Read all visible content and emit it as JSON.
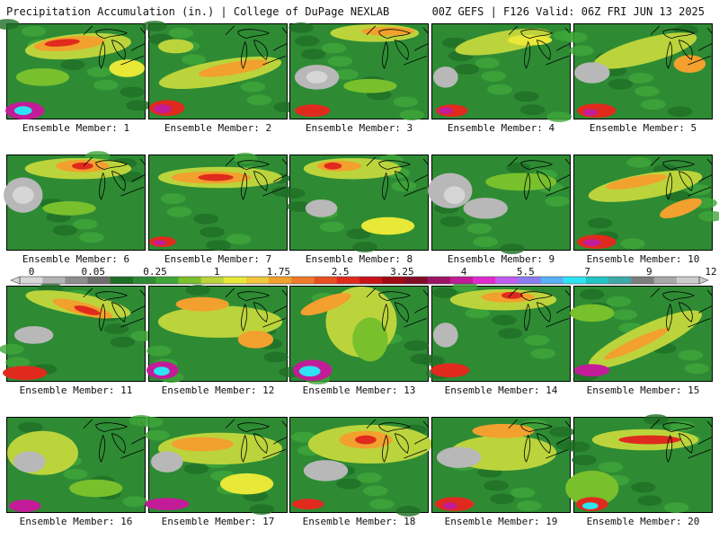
{
  "header": {
    "left": "Precipitation Accumulation (in.) | College of DuPage NEXLAB",
    "right": "00Z GEFS | F126 Valid: 06Z FRI JUN 13 2025"
  },
  "colorbar": {
    "tick_labels": [
      "0",
      "0.05",
      "0.25",
      "1",
      "1.75",
      "2.5",
      "3.25",
      "4",
      "5.5",
      "7",
      "9",
      "12"
    ],
    "colors": [
      "#d8d8d8",
      "#b4b4b4",
      "#8e8e8e",
      "#6e6e6e",
      "#1f6e26",
      "#2e8b34",
      "#3fa63a",
      "#79c02d",
      "#bcd43c",
      "#e8e838",
      "#f0c83a",
      "#f2a02e",
      "#ee7a2a",
      "#e85022",
      "#e02a1e",
      "#c81218",
      "#a00a14",
      "#800c28",
      "#9c1464",
      "#c21c98",
      "#e02ad0",
      "#c05cf0",
      "#8c7cf4",
      "#5ab0f8",
      "#2ee4f4",
      "#22c4c4",
      "#40a8a8",
      "#7e7e7e",
      "#a8a8a8",
      "#cccccc"
    ]
  },
  "members": [
    {
      "label": "Ensemble Member: 1"
    },
    {
      "label": "Ensemble Member: 2"
    },
    {
      "label": "Ensemble Member: 3"
    },
    {
      "label": "Ensemble Member: 4"
    },
    {
      "label": "Ensemble Member: 5"
    },
    {
      "label": "Ensemble Member: 6"
    },
    {
      "label": "Ensemble Member: 7"
    },
    {
      "label": "Ensemble Member: 8"
    },
    {
      "label": "Ensemble Member: 9"
    },
    {
      "label": "Ensemble Member: 10"
    },
    {
      "label": "Ensemble Member: 11"
    },
    {
      "label": "Ensemble Member: 12"
    },
    {
      "label": "Ensemble Member: 13"
    },
    {
      "label": "Ensemble Member: 14"
    },
    {
      "label": "Ensemble Member: 15"
    },
    {
      "label": "Ensemble Member: 16"
    },
    {
      "label": "Ensemble Member: 17"
    },
    {
      "label": "Ensemble Member: 18"
    },
    {
      "label": "Ensemble Member: 19"
    },
    {
      "label": "Ensemble Member: 20"
    }
  ]
}
